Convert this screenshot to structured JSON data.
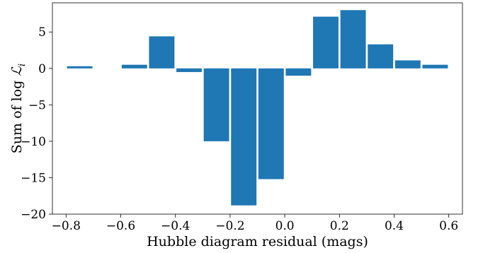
{
  "chart_data": {
    "type": "bar",
    "title": "",
    "xlabel": "Hubble diagram residual (mags)",
    "ylabel_prefix": "Sum of log ",
    "ylabel_symbol": "ℒ",
    "ylabel_subscript": "i",
    "xlim": [
      -0.85,
      0.65
    ],
    "ylim": [
      -20,
      9
    ],
    "grid": false,
    "legend": "none",
    "bar_width": 0.093,
    "color": "#1f77b4",
    "x_ticks": [
      {
        "value": -0.8,
        "label": "−0.8"
      },
      {
        "value": -0.6,
        "label": "−0.6"
      },
      {
        "value": -0.4,
        "label": "−0.4"
      },
      {
        "value": -0.2,
        "label": "−0.2"
      },
      {
        "value": 0.0,
        "label": "0.0"
      },
      {
        "value": 0.2,
        "label": "0.2"
      },
      {
        "value": 0.4,
        "label": "0.4"
      },
      {
        "value": 0.6,
        "label": "0.6"
      }
    ],
    "y_ticks": [
      {
        "value": 5,
        "label": "5"
      },
      {
        "value": 0,
        "label": "0"
      },
      {
        "value": -5,
        "label": "−5"
      },
      {
        "value": -10,
        "label": "−10"
      },
      {
        "value": -15,
        "label": "−15"
      },
      {
        "value": -20,
        "label": "−20"
      }
    ],
    "x": [
      -0.75,
      -0.55,
      -0.45,
      -0.35,
      -0.25,
      -0.15,
      -0.05,
      0.05,
      0.15,
      0.25,
      0.35,
      0.45,
      0.55
    ],
    "values": [
      0.3,
      0.5,
      4.4,
      -0.5,
      -10.0,
      -18.8,
      -15.2,
      -1.0,
      7.1,
      8.0,
      3.3,
      1.1,
      0.5
    ]
  }
}
